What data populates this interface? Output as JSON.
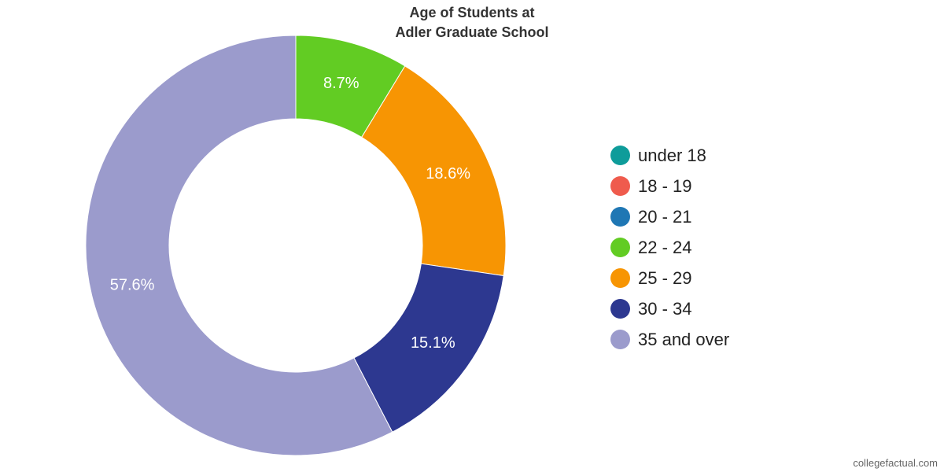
{
  "chart_data": {
    "type": "pie",
    "title": "Age of Students at\nAdler Graduate School",
    "title_lines": [
      "Age of Students at",
      "Adler Graduate School"
    ],
    "donut": true,
    "legend_position": "right",
    "categories": [
      "under 18",
      "18 - 19",
      "20 - 21",
      "22 - 24",
      "25 - 29",
      "30 - 34",
      "35 and over"
    ],
    "values": [
      0,
      0,
      0,
      8.7,
      18.6,
      15.1,
      57.6
    ],
    "value_labels": [
      "",
      "",
      "",
      "8.7%",
      "18.6%",
      "15.1%",
      "57.6%"
    ],
    "colors": [
      "#0e9c9a",
      "#ef5b4d",
      "#1f77b4",
      "#62cc23",
      "#f79503",
      "#2d3890",
      "#9b9bcc"
    ]
  },
  "source_text": "collegefactual.com"
}
